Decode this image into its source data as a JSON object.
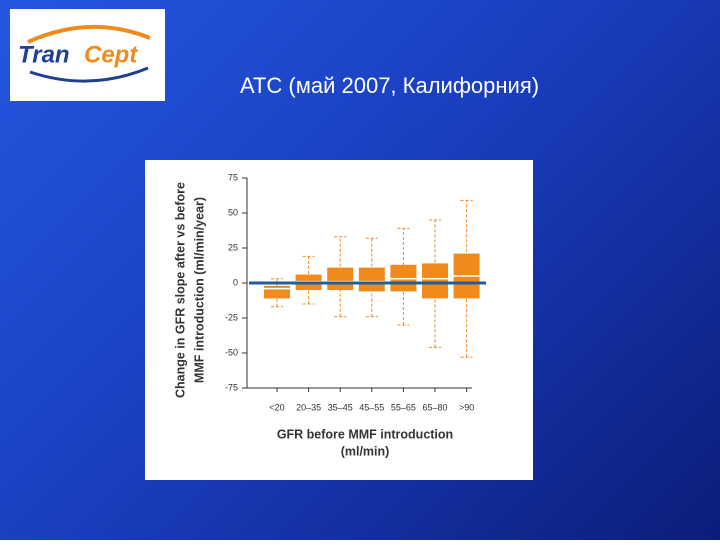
{
  "slide": {
    "title": "АТС (май 2007, Калифорния)",
    "logo": [
      "Tran",
      "Cept"
    ]
  },
  "chart_data": {
    "type": "box",
    "y_label": [
      "Change in GFR slope after vs before",
      "MMF introduction (ml/min/year)"
    ],
    "x_label": [
      "GFR before MMF introduction",
      "(ml/min)"
    ],
    "categories": [
      "<20",
      "20–35",
      "35–45",
      "45–55",
      "55–65",
      "65–80",
      ">90"
    ],
    "min": [
      -17,
      -15,
      -24,
      -24,
      -30,
      -46,
      -53
    ],
    "q1": [
      -11,
      -5,
      -5,
      -6,
      -6,
      -11,
      -11
    ],
    "median": [
      -4,
      1,
      1,
      1,
      3,
      3,
      5
    ],
    "q3": [
      -2,
      6,
      11,
      11,
      13,
      14,
      21
    ],
    "max": [
      3,
      19,
      33,
      32,
      39,
      45,
      59
    ],
    "color": "#f08a1c",
    "reference_line": 0,
    "reference_color": "#1f5f9f",
    "ylim": [
      -75,
      75
    ],
    "yticks": [
      -75,
      -50,
      -25,
      0,
      25,
      50,
      75
    ]
  }
}
